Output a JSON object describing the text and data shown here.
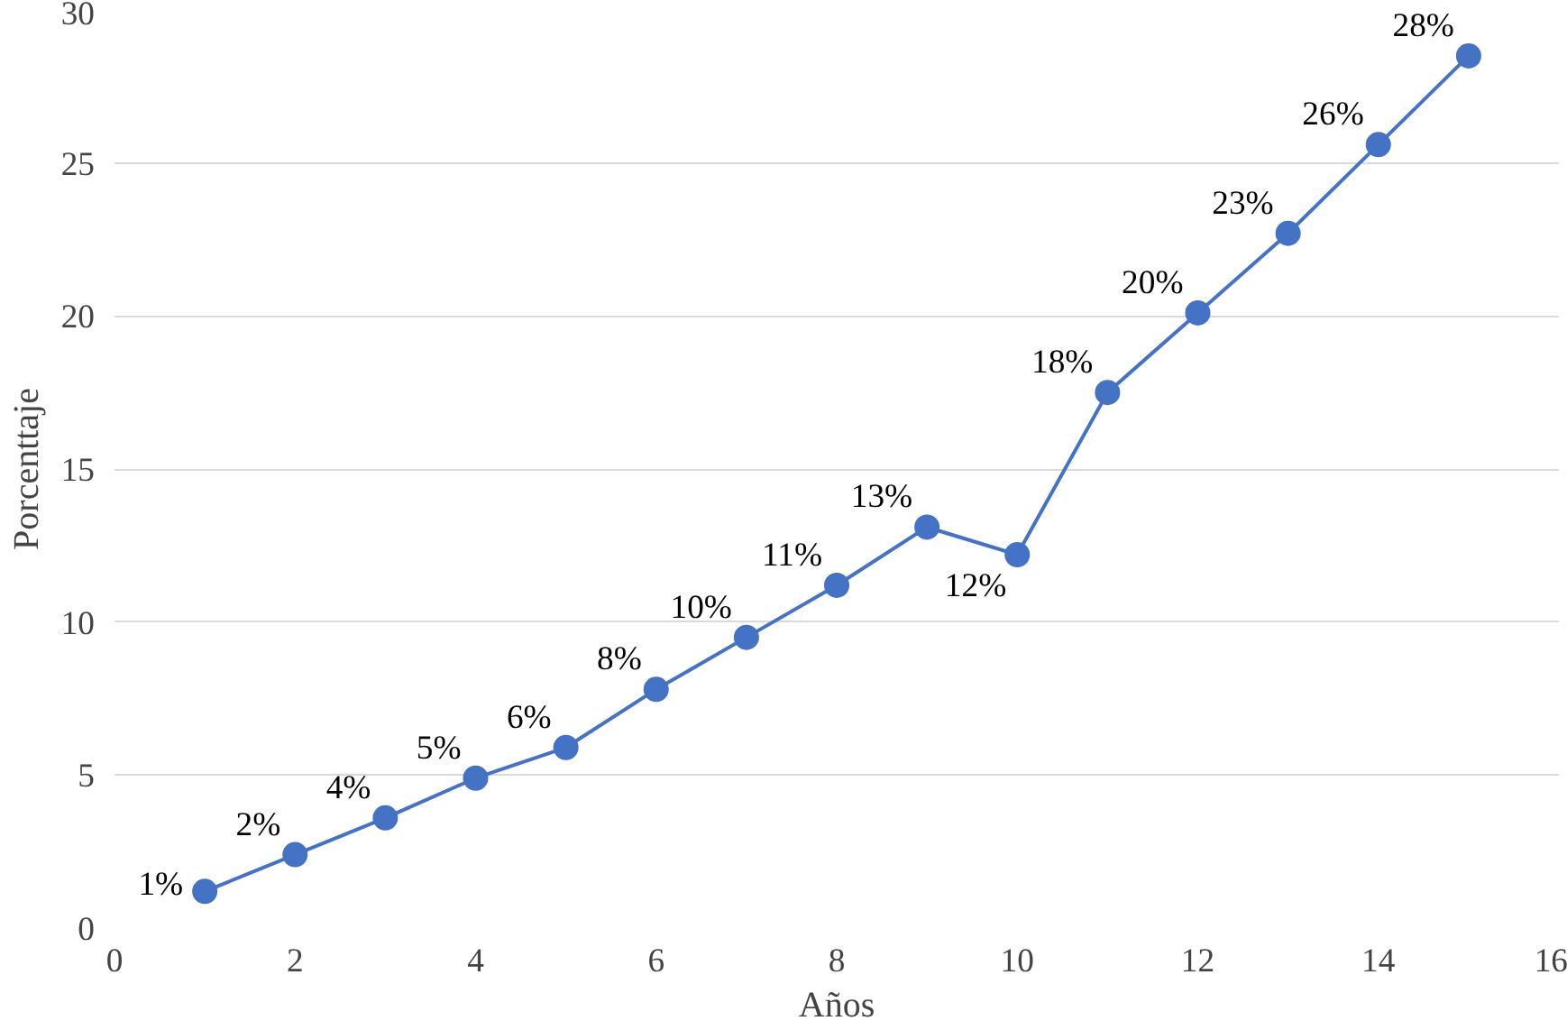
{
  "chart_data": {
    "type": "line",
    "xlabel": "Años",
    "ylabel": "Porcenttaje",
    "x": [
      1,
      2,
      3,
      4,
      5,
      6,
      7,
      8,
      9,
      10,
      11,
      12,
      13,
      14,
      15
    ],
    "series": [
      {
        "color": "#4472c4",
        "values": [
          1.2,
          2.4,
          3.6,
          4.9,
          5.9,
          7.8,
          9.5,
          11.2,
          13.1,
          12.2,
          17.5,
          20.1,
          22.7,
          25.6,
          28.5
        ],
        "value_labels": [
          "1%",
          "2%",
          "4%",
          "5%",
          "6%",
          "8%",
          "10%",
          "11%",
          "13%",
          "12%",
          "18%",
          "20%",
          "23%",
          "26%",
          "28%"
        ]
      }
    ],
    "xlim": [
      0,
      16
    ],
    "xticks": [
      0,
      2,
      4,
      6,
      8,
      10,
      12,
      14,
      16
    ],
    "ylim": [
      0,
      30
    ],
    "yticks": [
      0,
      5,
      10,
      15,
      20,
      25,
      30
    ],
    "grid": "y",
    "marker": "circle",
    "line_style": "solid"
  }
}
